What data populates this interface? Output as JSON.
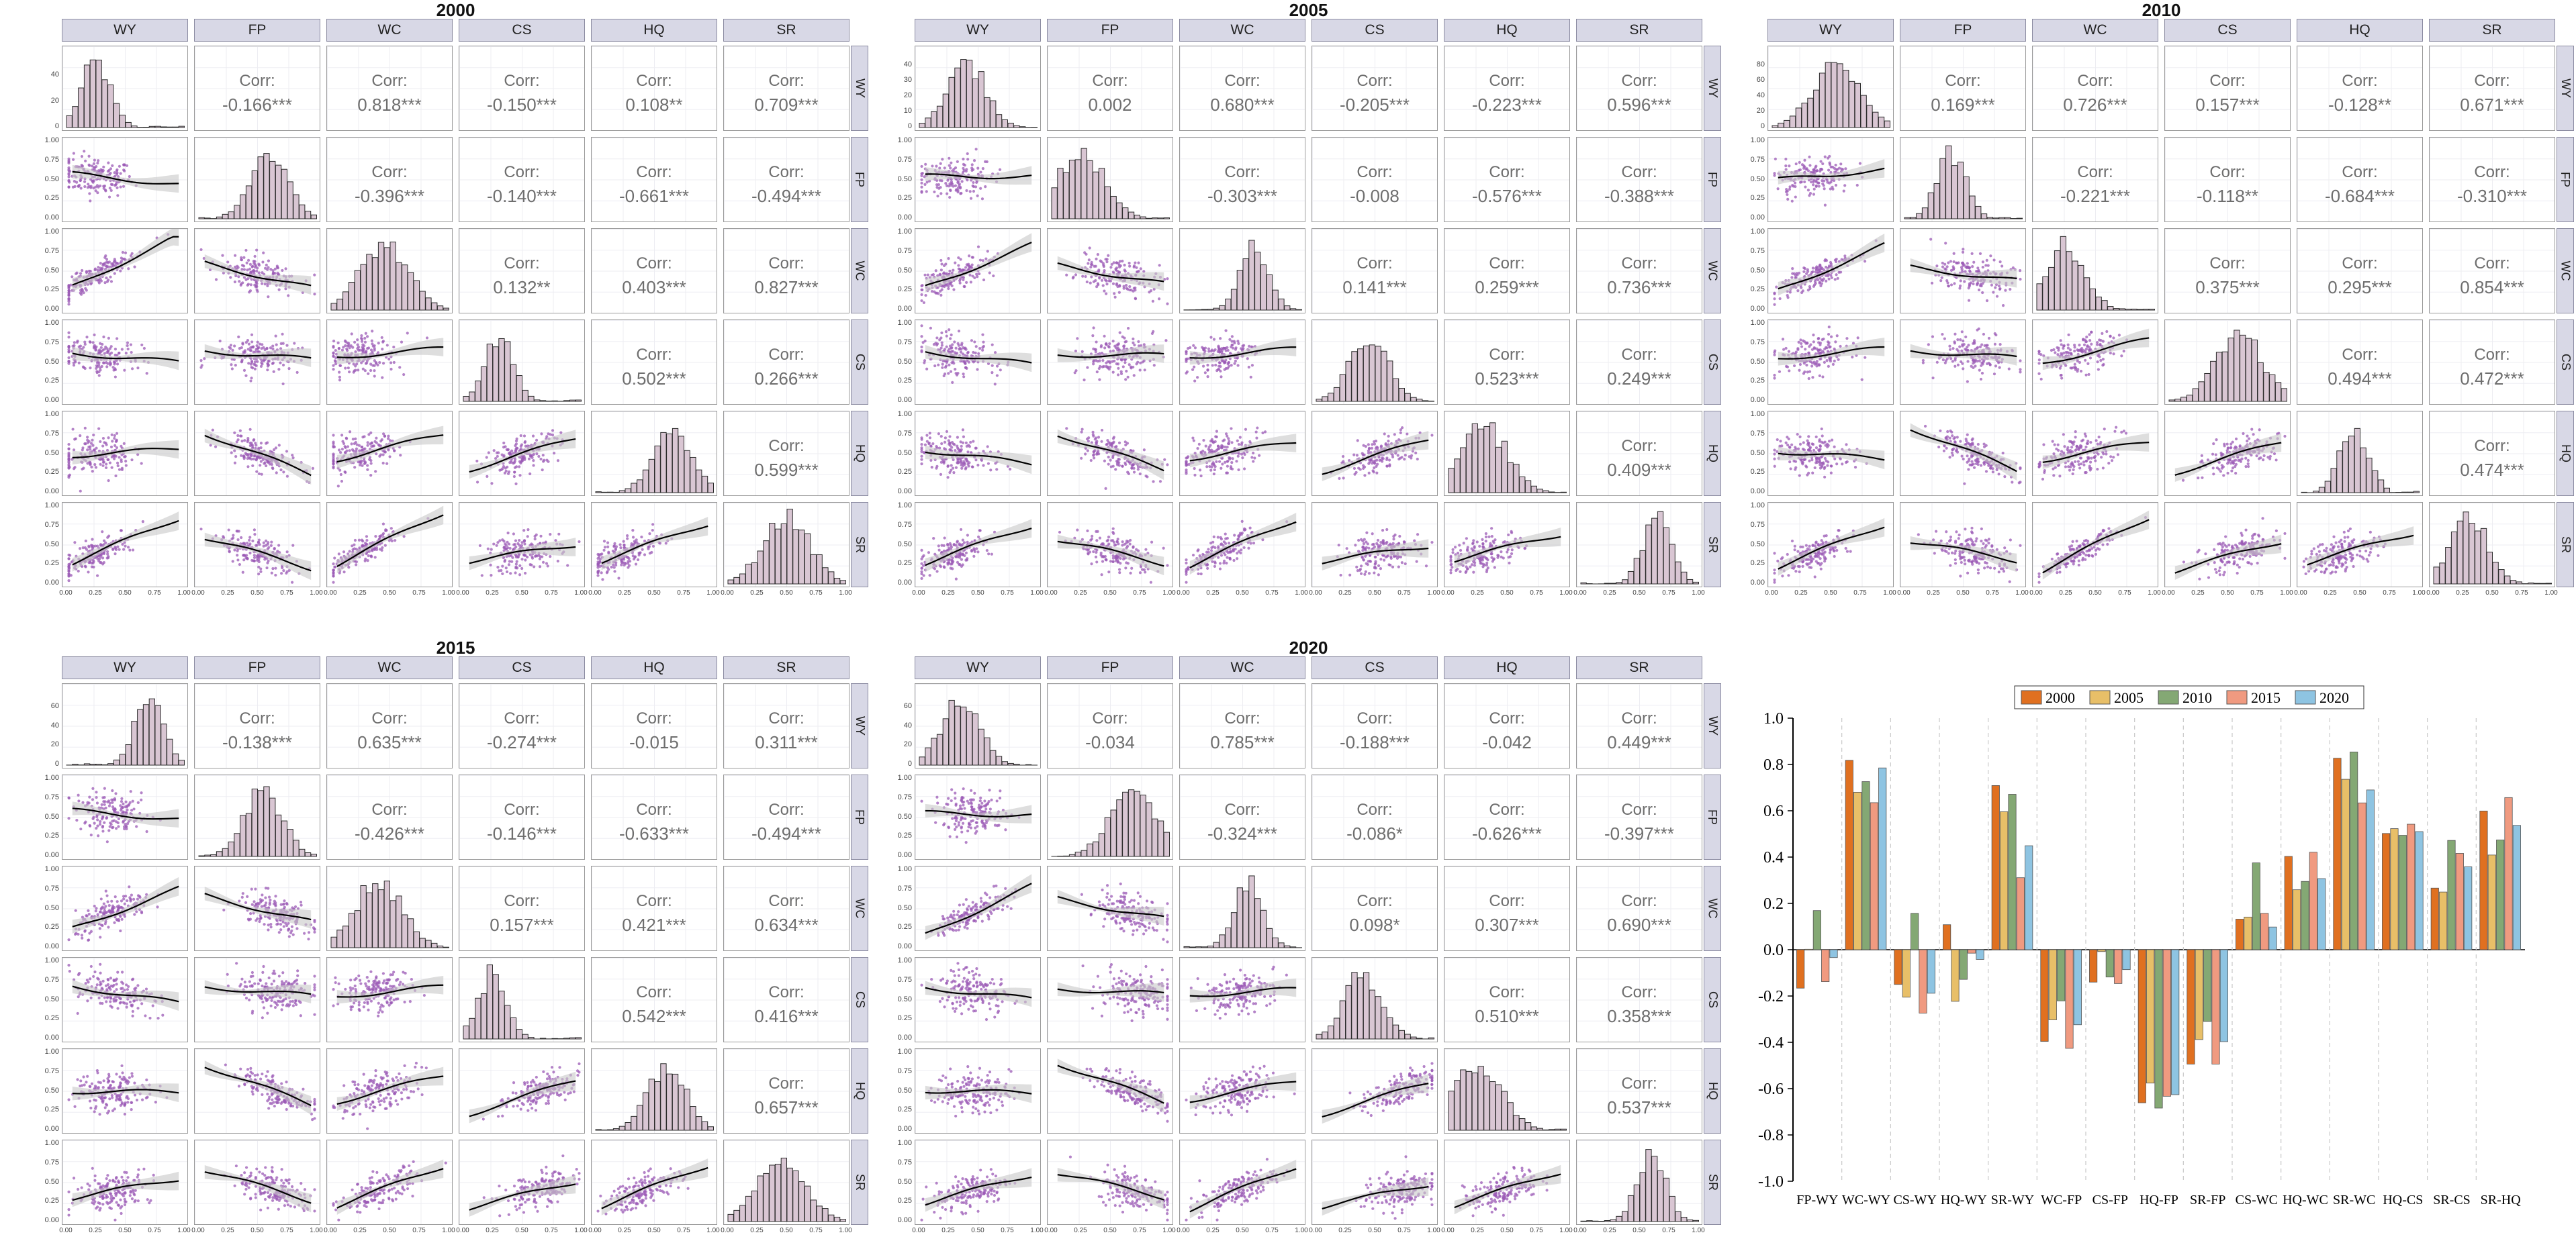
{
  "variables": [
    "WY",
    "FP",
    "WC",
    "CS",
    "HQ",
    "SR"
  ],
  "corr_label": "Corr:",
  "axis_ticks": [
    "0.00",
    "0.25",
    "0.50",
    "0.75",
    "1.00"
  ],
  "colors": {
    "scatter": "#9b59b6",
    "histogram_fill": "#d9c6d3",
    "histogram_stroke": "#2b2b2b",
    "strip_bg": "#d8d8e6",
    "smooth_line": "#000000",
    "confidence_band": "#c8c8c8"
  },
  "matrices": [
    {
      "year": "2000",
      "hist_yticks": [
        "0",
        "20",
        "40"
      ],
      "correlations": [
        [
          "FP",
          "WY",
          "-0.166***"
        ],
        [
          "WC",
          "WY",
          "0.818***"
        ],
        [
          "CS",
          "WY",
          "-0.150***"
        ],
        [
          "HQ",
          "WY",
          "0.108**"
        ],
        [
          "SR",
          "WY",
          "0.709***"
        ],
        [
          "WC",
          "FP",
          "-0.396***"
        ],
        [
          "CS",
          "FP",
          "-0.140***"
        ],
        [
          "HQ",
          "FP",
          "-0.661***"
        ],
        [
          "SR",
          "FP",
          "-0.494***"
        ],
        [
          "CS",
          "WC",
          "0.132**"
        ],
        [
          "HQ",
          "WC",
          "0.403***"
        ],
        [
          "SR",
          "WC",
          "0.827***"
        ],
        [
          "HQ",
          "CS",
          "0.502***"
        ],
        [
          "SR",
          "CS",
          "0.266***"
        ],
        [
          "SR",
          "HQ",
          "0.599***"
        ]
      ]
    },
    {
      "year": "2005",
      "hist_yticks": [
        "0",
        "10",
        "20",
        "30",
        "40"
      ],
      "correlations": [
        [
          "FP",
          "WY",
          "0.002"
        ],
        [
          "WC",
          "WY",
          "0.680***"
        ],
        [
          "CS",
          "WY",
          "-0.205***"
        ],
        [
          "HQ",
          "WY",
          "-0.223***"
        ],
        [
          "SR",
          "WY",
          "0.596***"
        ],
        [
          "WC",
          "FP",
          "-0.303***"
        ],
        [
          "CS",
          "FP",
          "-0.008"
        ],
        [
          "HQ",
          "FP",
          "-0.576***"
        ],
        [
          "SR",
          "FP",
          "-0.388***"
        ],
        [
          "CS",
          "WC",
          "0.141***"
        ],
        [
          "HQ",
          "WC",
          "0.259***"
        ],
        [
          "SR",
          "WC",
          "0.736***"
        ],
        [
          "HQ",
          "CS",
          "0.523***"
        ],
        [
          "SR",
          "CS",
          "0.249***"
        ],
        [
          "SR",
          "HQ",
          "0.409***"
        ]
      ]
    },
    {
      "year": "2010",
      "hist_yticks": [
        "0",
        "20",
        "40",
        "60",
        "80"
      ],
      "correlations": [
        [
          "FP",
          "WY",
          "0.169***"
        ],
        [
          "WC",
          "WY",
          "0.726***"
        ],
        [
          "CS",
          "WY",
          "0.157***"
        ],
        [
          "HQ",
          "WY",
          "-0.128**"
        ],
        [
          "SR",
          "WY",
          "0.671***"
        ],
        [
          "WC",
          "FP",
          "-0.221***"
        ],
        [
          "CS",
          "FP",
          "-0.118**"
        ],
        [
          "HQ",
          "FP",
          "-0.684***"
        ],
        [
          "SR",
          "FP",
          "-0.310***"
        ],
        [
          "CS",
          "WC",
          "0.375***"
        ],
        [
          "HQ",
          "WC",
          "0.295***"
        ],
        [
          "SR",
          "WC",
          "0.854***"
        ],
        [
          "HQ",
          "CS",
          "0.494***"
        ],
        [
          "SR",
          "CS",
          "0.472***"
        ],
        [
          "SR",
          "HQ",
          "0.474***"
        ]
      ]
    },
    {
      "year": "2015",
      "hist_yticks": [
        "0",
        "20",
        "40",
        "60"
      ],
      "correlations": [
        [
          "FP",
          "WY",
          "-0.138***"
        ],
        [
          "WC",
          "WY",
          "0.635***"
        ],
        [
          "CS",
          "WY",
          "-0.274***"
        ],
        [
          "HQ",
          "WY",
          "-0.015"
        ],
        [
          "SR",
          "WY",
          "0.311***"
        ],
        [
          "WC",
          "FP",
          "-0.426***"
        ],
        [
          "CS",
          "FP",
          "-0.146***"
        ],
        [
          "HQ",
          "FP",
          "-0.633***"
        ],
        [
          "SR",
          "FP",
          "-0.494***"
        ],
        [
          "CS",
          "WC",
          "0.157***"
        ],
        [
          "HQ",
          "WC",
          "0.421***"
        ],
        [
          "SR",
          "WC",
          "0.634***"
        ],
        [
          "HQ",
          "CS",
          "0.542***"
        ],
        [
          "SR",
          "CS",
          "0.416***"
        ],
        [
          "SR",
          "HQ",
          "0.657***"
        ]
      ]
    },
    {
      "year": "2020",
      "hist_yticks": [
        "0",
        "20",
        "40",
        "60"
      ],
      "correlations": [
        [
          "FP",
          "WY",
          "-0.034"
        ],
        [
          "WC",
          "WY",
          "0.785***"
        ],
        [
          "CS",
          "WY",
          "-0.188***"
        ],
        [
          "HQ",
          "WY",
          "-0.042"
        ],
        [
          "SR",
          "WY",
          "0.449***"
        ],
        [
          "WC",
          "FP",
          "-0.324***"
        ],
        [
          "CS",
          "FP",
          "-0.086*"
        ],
        [
          "HQ",
          "FP",
          "-0.626***"
        ],
        [
          "SR",
          "FP",
          "-0.397***"
        ],
        [
          "CS",
          "WC",
          "0.098*"
        ],
        [
          "HQ",
          "WC",
          "0.307***"
        ],
        [
          "SR",
          "WC",
          "0.690***"
        ],
        [
          "HQ",
          "CS",
          "0.510***"
        ],
        [
          "SR",
          "CS",
          "0.358***"
        ],
        [
          "SR",
          "HQ",
          "0.537***"
        ]
      ]
    }
  ],
  "chart_data": {
    "type": "bar",
    "title": "",
    "categories": [
      "FP-WY",
      "WC-WY",
      "CS-WY",
      "HQ-WY",
      "SR-WY",
      "WC-FP",
      "CS-FP",
      "HQ-FP",
      "SR-FP",
      "CS-WC",
      "HQ-WC",
      "SR-WC",
      "HQ-CS",
      "SR-CS",
      "SR-HQ"
    ],
    "ylim": [
      -1.0,
      1.0
    ],
    "yticks": [
      "1.0",
      "0.8",
      "0.6",
      "0.4",
      "0.2",
      "0.0",
      "-0.2",
      "-0.4",
      "-0.6",
      "-0.8",
      "-1.0"
    ],
    "legend_position": "top",
    "series": [
      {
        "name": "2000",
        "color": "#e07020",
        "values": [
          -0.166,
          0.818,
          -0.15,
          0.108,
          0.709,
          -0.396,
          -0.14,
          -0.661,
          -0.494,
          0.132,
          0.403,
          0.827,
          0.502,
          0.266,
          0.599
        ]
      },
      {
        "name": "2005",
        "color": "#e8bf68",
        "values": [
          0.002,
          0.68,
          -0.205,
          -0.223,
          0.596,
          -0.303,
          -0.008,
          -0.576,
          -0.388,
          0.141,
          0.259,
          0.736,
          0.523,
          0.249,
          0.409
        ]
      },
      {
        "name": "2010",
        "color": "#84a874",
        "values": [
          0.169,
          0.726,
          0.157,
          -0.128,
          0.671,
          -0.221,
          -0.118,
          -0.684,
          -0.31,
          0.375,
          0.295,
          0.854,
          0.494,
          0.472,
          0.474
        ]
      },
      {
        "name": "2015",
        "color": "#f09a80",
        "values": [
          -0.138,
          0.635,
          -0.274,
          -0.015,
          0.311,
          -0.426,
          -0.146,
          -0.633,
          -0.494,
          0.157,
          0.421,
          0.634,
          0.542,
          0.416,
          0.657
        ]
      },
      {
        "name": "2020",
        "color": "#8ec4e2",
        "values": [
          -0.034,
          0.785,
          -0.188,
          -0.042,
          0.449,
          -0.324,
          -0.086,
          -0.626,
          -0.397,
          0.098,
          0.307,
          0.69,
          0.51,
          0.358,
          0.537
        ]
      }
    ]
  }
}
